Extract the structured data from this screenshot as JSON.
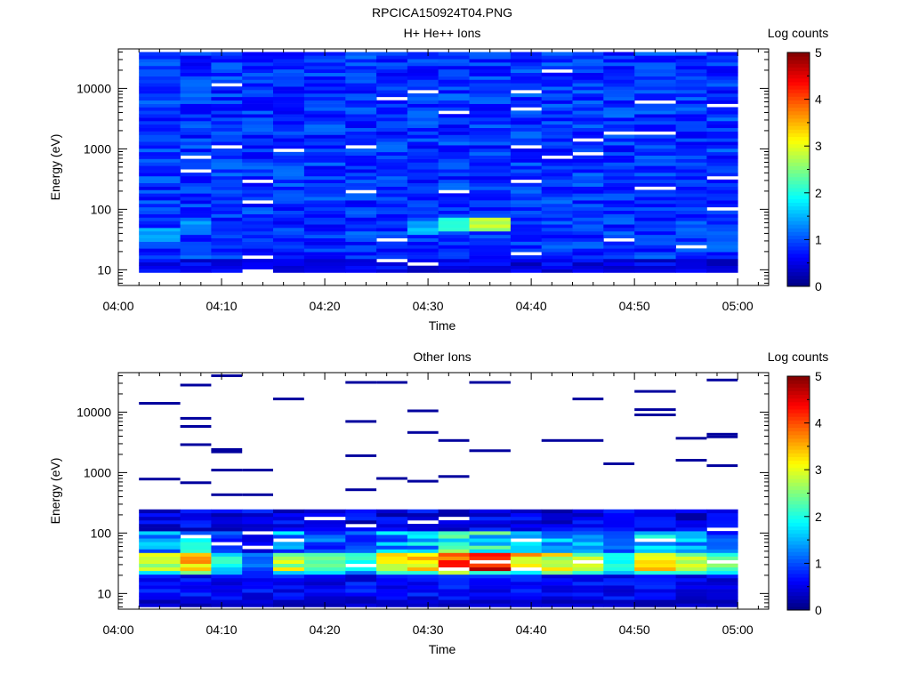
{
  "figure": {
    "title": "RPCICA150924T04.PNG"
  },
  "chart_data": [
    {
      "type": "heatmap",
      "title": "H+ He++ Ions",
      "xlabel": "Time",
      "ylabel": "Energy (eV)",
      "x_scale": "time",
      "y_scale": "log",
      "xlim": [
        "04:00",
        "05:03"
      ],
      "ylim": [
        5.5,
        45000
      ],
      "x_ticks": [
        "04:00",
        "04:10",
        "04:20",
        "04:30",
        "04:40",
        "04:50",
        "05:00"
      ],
      "y_ticks": [
        10,
        100,
        1000,
        10000
      ],
      "y_tick_labels": [
        "10",
        "100",
        "1000",
        "10000"
      ],
      "time_bins": [
        "04:02",
        "04:06",
        "04:09",
        "04:12",
        "04:15",
        "04:18",
        "04:22",
        "04:25",
        "04:28",
        "04:31",
        "04:34",
        "04:38",
        "04:41",
        "04:44",
        "04:47",
        "04:50",
        "04:54",
        "04:57"
      ],
      "time_bin_end": "05:00",
      "energy_range": [
        9,
        40000
      ],
      "energy_bins": 64,
      "colorbar": {
        "label": "Log counts",
        "min": 0,
        "max": 5,
        "ticks": [
          "0",
          "1",
          "2",
          "3",
          "4",
          "5"
        ],
        "colormap": "jet"
      },
      "hot_spots": [
        {
          "time": "04:33",
          "energy": 55,
          "log_counts": 2.3
        },
        {
          "time": "04:36",
          "energy": 55,
          "log_counts": 2.8
        },
        {
          "time": "04:30",
          "energy": 50,
          "log_counts": 1.6
        },
        {
          "time": "04:03",
          "energy": 38,
          "log_counts": 1.5
        },
        {
          "time": "04:06",
          "energy": 50,
          "log_counts": 1.4
        }
      ]
    },
    {
      "type": "heatmap",
      "title": "Other Ions",
      "xlabel": "Time",
      "ylabel": "Energy (eV)",
      "x_scale": "time",
      "y_scale": "log",
      "xlim": [
        "04:00",
        "05:03"
      ],
      "ylim": [
        5.5,
        45000
      ],
      "x_ticks": [
        "04:00",
        "04:10",
        "04:20",
        "04:30",
        "04:40",
        "04:50",
        "05:00"
      ],
      "y_ticks": [
        10,
        100,
        1000,
        10000
      ],
      "y_tick_labels": [
        "10",
        "100",
        "1000",
        "10000"
      ],
      "time_bins": [
        "04:02",
        "04:06",
        "04:09",
        "04:12",
        "04:15",
        "04:18",
        "04:22",
        "04:25",
        "04:28",
        "04:31",
        "04:34",
        "04:38",
        "04:41",
        "04:44",
        "04:47",
        "04:50",
        "04:54",
        "04:57"
      ],
      "time_bin_end": "05:00",
      "energy_range": [
        6,
        40000
      ],
      "energy_bins": 64,
      "colorbar": {
        "label": "Log counts",
        "min": 0,
        "max": 5,
        "ticks": [
          "0",
          "1",
          "2",
          "3",
          "4",
          "5"
        ],
        "colormap": "jet"
      },
      "peak_profile_log_counts": [
        2.9,
        3.8,
        2.1,
        1.2,
        3.1,
        2.4,
        2.1,
        3.2,
        3.8,
        4.4,
        4.6,
        3.7,
        3.4,
        3.0,
        2.1,
        3.5,
        3.0,
        2.5
      ],
      "peak_energy_band": [
        25,
        50
      ],
      "sparse_high_energy_lines": [
        {
          "time": "04:03",
          "energy": 14000
        },
        {
          "time": "04:03",
          "energy": 780
        },
        {
          "time": "04:07",
          "energy": 28000
        },
        {
          "time": "04:07",
          "energy": 7900
        },
        {
          "time": "04:07",
          "energy": 5800
        },
        {
          "time": "04:07",
          "energy": 2900
        },
        {
          "time": "04:07",
          "energy": 680
        },
        {
          "time": "04:10",
          "energy": 40000
        },
        {
          "time": "04:10",
          "energy": 2400
        },
        {
          "time": "04:10",
          "energy": 2200
        },
        {
          "time": "04:10",
          "energy": 1100
        },
        {
          "time": "04:10",
          "energy": 430
        },
        {
          "time": "04:13",
          "energy": 1100
        },
        {
          "time": "04:13",
          "energy": 430
        },
        {
          "time": "04:15",
          "energy": 16500
        },
        {
          "time": "04:22",
          "energy": 31000
        },
        {
          "time": "04:22",
          "energy": 7000
        },
        {
          "time": "04:22",
          "energy": 1900
        },
        {
          "time": "04:22",
          "energy": 520
        },
        {
          "time": "04:25",
          "energy": 31000
        },
        {
          "time": "04:25",
          "energy": 800
        },
        {
          "time": "04:28",
          "energy": 10500
        },
        {
          "time": "04:28",
          "energy": 4600
        },
        {
          "time": "04:28",
          "energy": 720
        },
        {
          "time": "04:31",
          "energy": 3400
        },
        {
          "time": "04:31",
          "energy": 860
        },
        {
          "time": "04:37",
          "energy": 31000
        },
        {
          "time": "04:37",
          "energy": 2300
        },
        {
          "time": "04:41",
          "energy": 3400
        },
        {
          "time": "04:44",
          "energy": 16500
        },
        {
          "time": "04:44",
          "energy": 3400
        },
        {
          "time": "04:47",
          "energy": 1400
        },
        {
          "time": "04:51",
          "energy": 22000
        },
        {
          "time": "04:51",
          "energy": 11000
        },
        {
          "time": "04:51",
          "energy": 9000
        },
        {
          "time": "04:54",
          "energy": 3700
        },
        {
          "time": "04:54",
          "energy": 1600
        },
        {
          "time": "04:57",
          "energy": 34000
        },
        {
          "time": "04:57",
          "energy": 4300
        },
        {
          "time": "04:57",
          "energy": 3900
        },
        {
          "time": "04:57",
          "energy": 1300
        }
      ]
    }
  ]
}
